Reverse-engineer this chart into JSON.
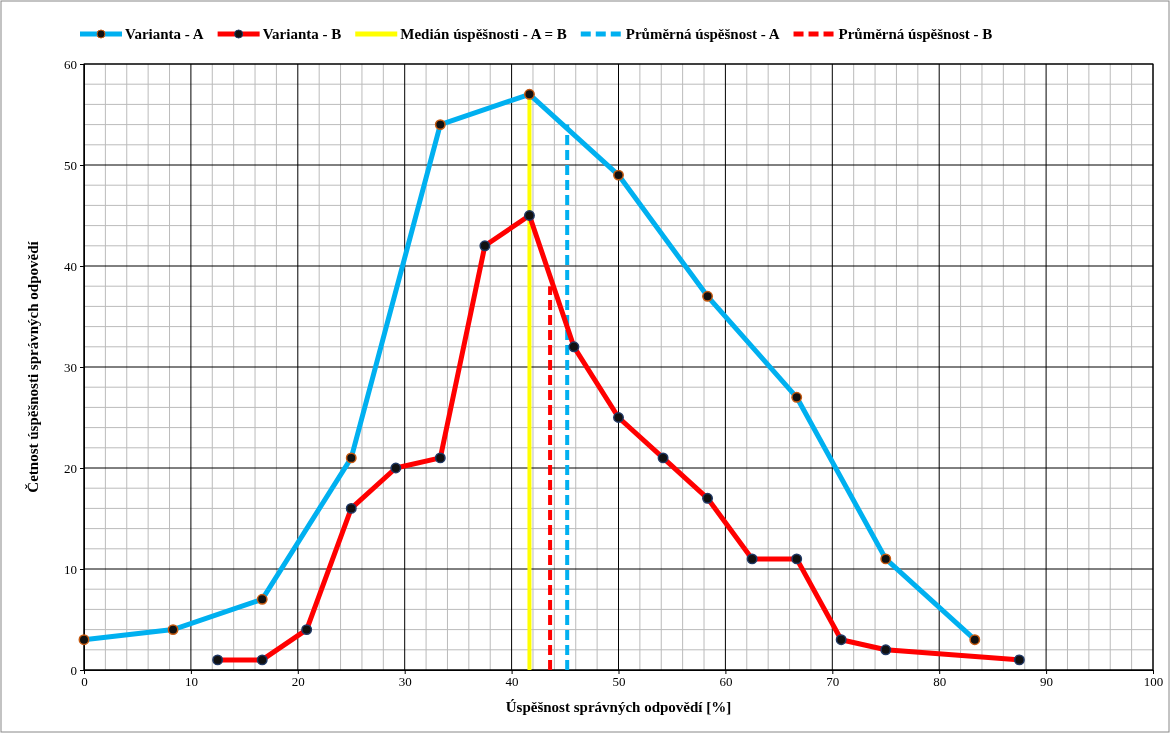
{
  "chart_data": {
    "type": "line",
    "xlabel": "Úspěšnost správných  odpovědí [%]",
    "ylabel": "Četnost úspěšnosti správných  odpovědí",
    "xlim": [
      0,
      100
    ],
    "xticks": [
      0,
      10,
      20,
      30,
      40,
      50,
      60,
      70,
      80,
      90,
      100
    ],
    "ylim": [
      0,
      60
    ],
    "yticks": [
      0,
      10,
      20,
      30,
      40,
      50,
      60
    ],
    "grid": true,
    "legend": "top",
    "series": [
      {
        "name": "Varianta - A",
        "color": "#00b0f0",
        "marker": "circle",
        "x": [
          0,
          8.33,
          16.67,
          25,
          33.33,
          41.67,
          50,
          58.33,
          66.67,
          75,
          83.33
        ],
        "values": [
          3,
          4,
          7,
          21,
          54,
          57,
          49,
          37,
          27,
          11,
          3
        ]
      },
      {
        "name": "Varianta - B",
        "color": "#ff0000",
        "marker": "circle",
        "x": [
          12.5,
          16.67,
          20.83,
          25,
          29.17,
          33.33,
          37.5,
          41.67,
          45.83,
          50,
          54.17,
          58.33,
          62.5,
          66.67,
          70.83,
          75,
          87.5
        ],
        "values": [
          1,
          1,
          4,
          16,
          20,
          21,
          42,
          45,
          32,
          25,
          21,
          17,
          11,
          11,
          3,
          2,
          1
        ]
      },
      {
        "name": "Medián úspěšnosti - A = B",
        "color": "#ffff00",
        "marker": "none",
        "line_style": "solid",
        "x": [
          41.67,
          41.67
        ],
        "values": [
          0,
          57
        ]
      },
      {
        "name": "Průměrná úspěšnost - A",
        "color": "#00b0f0",
        "marker": "none",
        "line_style": "dashed",
        "x": [
          45.2,
          45.2
        ],
        "values": [
          0,
          54
        ]
      },
      {
        "name": "Průměrná úspěšnost - B",
        "color": "#ff0000",
        "marker": "none",
        "line_style": "dashed",
        "x": [
          43.6,
          43.6
        ],
        "values": [
          0,
          38
        ]
      }
    ]
  }
}
